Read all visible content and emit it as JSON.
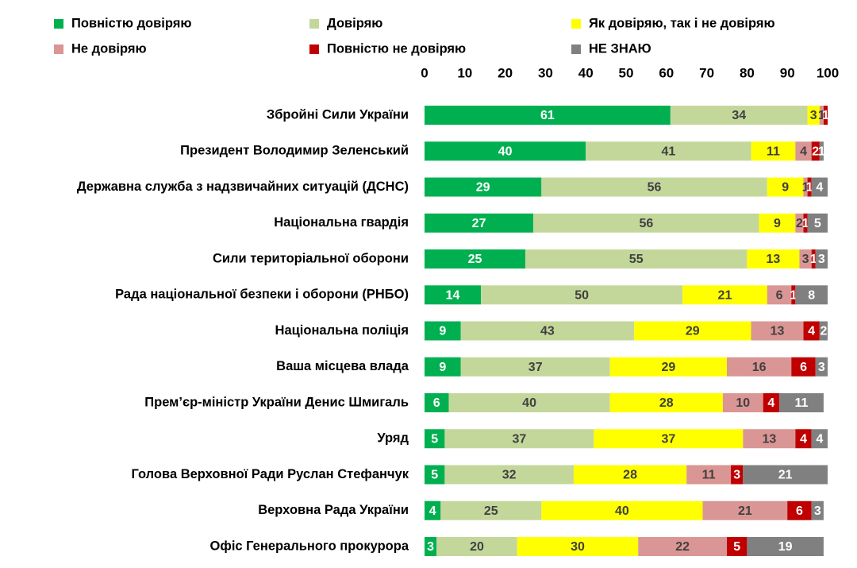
{
  "chart_data": {
    "type": "stacked-bar-horizontal",
    "categories": [
      "Збройні Сили України",
      "Президент Володимир Зеленський",
      "Державна служба з надзвичайних ситуацій (ДСНС)",
      "Національна гвардія",
      "Сили територіальної оборони",
      "Рада національної безпеки і оборони (РНБО)",
      "Національна поліція",
      "Ваша місцева влада",
      "Прем’єр-міністр України Денис Шмигаль",
      "Уряд",
      "Голова Верховної Ради Руслан Стефанчук",
      "Верховна Рада України",
      "Офіс Генерального прокурора"
    ],
    "series": [
      {
        "name": "Повністю довіряю",
        "color": "#00b050",
        "label_color": "#ffffff",
        "values": [
          61,
          40,
          29,
          27,
          25,
          14,
          9,
          9,
          6,
          5,
          5,
          4,
          3
        ]
      },
      {
        "name": "Довіряю",
        "color": "#c4d79b",
        "label_color": "#404040",
        "values": [
          34,
          41,
          56,
          56,
          55,
          50,
          43,
          37,
          40,
          37,
          32,
          25,
          20
        ]
      },
      {
        "name": "Як довіряю, так і не довіряю",
        "color": "#ffff00",
        "label_color": "#404040",
        "values": [
          3,
          11,
          9,
          9,
          13,
          21,
          29,
          29,
          28,
          37,
          28,
          40,
          30
        ]
      },
      {
        "name": "Не довіряю",
        "color": "#da9694",
        "label_color": "#404040",
        "values": [
          1,
          4,
          1,
          2,
          3,
          6,
          13,
          16,
          10,
          13,
          11,
          21,
          22
        ]
      },
      {
        "name": "Повністю не довіряю",
        "color": "#c00000",
        "label_color": "#ffffff",
        "values": [
          1,
          2,
          1,
          1,
          1,
          1,
          4,
          6,
          4,
          4,
          3,
          6,
          5
        ]
      },
      {
        "name": "НЕ ЗНАЮ",
        "color": "#808080",
        "label_color": "#ffffff",
        "values": [
          0,
          1,
          4,
          5,
          3,
          8,
          2,
          3,
          11,
          4,
          21,
          3,
          19
        ]
      }
    ],
    "xlim": [
      0,
      100
    ],
    "xticks": [
      0,
      10,
      20,
      30,
      40,
      50,
      60,
      70,
      80,
      90,
      100
    ]
  }
}
